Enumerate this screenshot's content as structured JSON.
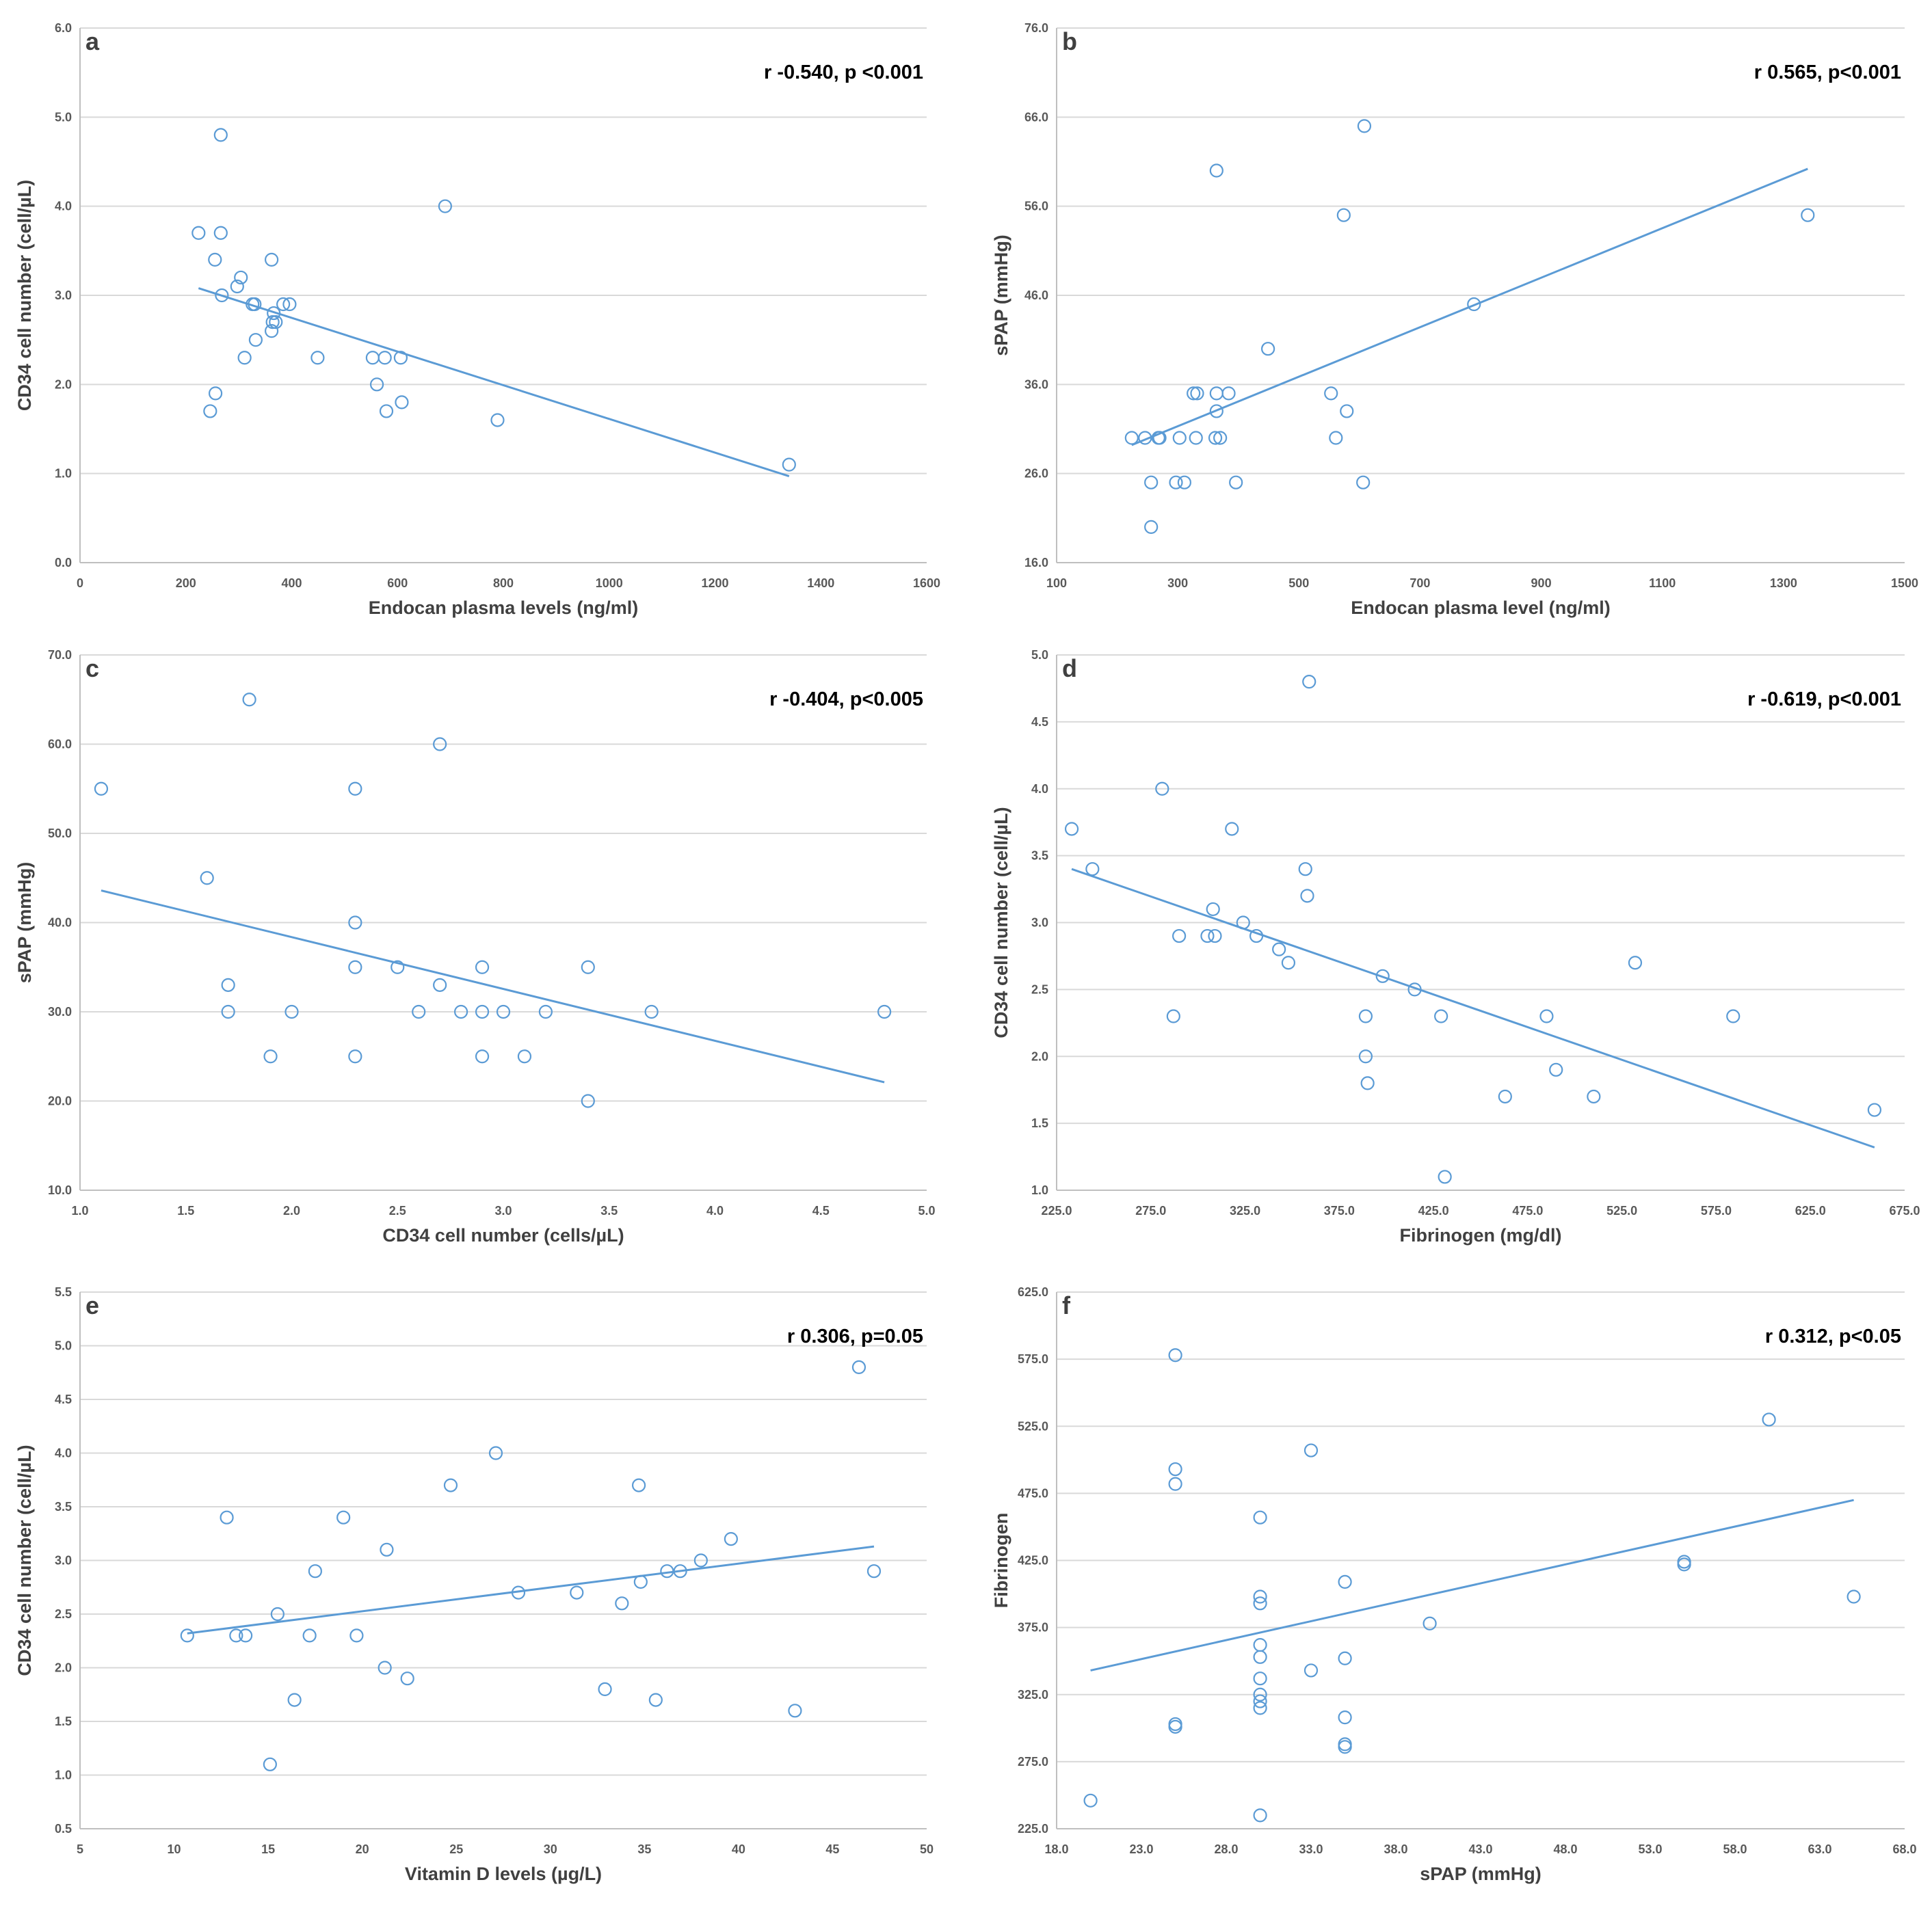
{
  "colors": {
    "marker": "#5b9bd5",
    "trend": "#5b9bd5",
    "grid": "#d9d9d9",
    "text": "#404040"
  },
  "chart_data": [
    {
      "panel": "a",
      "type": "scatter",
      "stat": "r -0.540, p <0.001",
      "xlabel": "Endocan plasma levels (ng/ml)",
      "ylabel": "CD34 cell number (cell/µL)",
      "xlim": [
        0,
        1600
      ],
      "ylim": [
        0,
        6
      ],
      "xticks": [
        0,
        200,
        400,
        600,
        800,
        1000,
        1200,
        1400,
        1600
      ],
      "yticks": [
        0,
        1,
        2,
        3,
        4,
        5,
        6
      ],
      "xtick_labels": [
        "0",
        "200",
        "400",
        "600",
        "800",
        "1000",
        "1200",
        "1400",
        "1600"
      ],
      "ytick_labels": [
        "0.0",
        "1.0",
        "2.0",
        "3.0",
        "4.0",
        "5.0",
        "6.0"
      ],
      "points": [
        [
          266,
          4.8
        ],
        [
          224,
          3.7
        ],
        [
          266,
          3.7
        ],
        [
          255,
          3.4
        ],
        [
          362,
          3.4
        ],
        [
          304,
          3.2
        ],
        [
          297,
          3.1
        ],
        [
          268,
          3.0
        ],
        [
          326,
          2.9
        ],
        [
          330,
          2.9
        ],
        [
          384,
          2.9
        ],
        [
          396,
          2.9
        ],
        [
          366,
          2.8
        ],
        [
          364,
          2.7
        ],
        [
          370,
          2.7
        ],
        [
          362,
          2.6
        ],
        [
          332,
          2.5
        ],
        [
          311,
          2.3
        ],
        [
          449,
          2.3
        ],
        [
          553,
          2.3
        ],
        [
          576,
          2.3
        ],
        [
          606,
          2.3
        ],
        [
          561,
          2.0
        ],
        [
          256,
          1.9
        ],
        [
          608,
          1.8
        ],
        [
          246,
          1.7
        ],
        [
          579,
          1.7
        ],
        [
          789,
          1.6
        ],
        [
          1340,
          1.1
        ],
        [
          690,
          4.0
        ]
      ],
      "trend": [
        [
          224,
          3.08
        ],
        [
          1340,
          0.97
        ]
      ]
    },
    {
      "panel": "b",
      "type": "scatter",
      "stat": "r 0.565, p<0.001",
      "xlabel": "Endocan plasma level (ng/ml)",
      "ylabel": "sPAP (mmHg)",
      "xlim": [
        100,
        1500
      ],
      "ylim": [
        16,
        76
      ],
      "xticks": [
        100,
        300,
        500,
        700,
        900,
        1100,
        1300,
        1500
      ],
      "yticks": [
        16,
        26,
        36,
        46,
        56,
        66,
        76
      ],
      "xtick_labels": [
        "100",
        "300",
        "500",
        "700",
        "900",
        "1100",
        "1300",
        "1500"
      ],
      "ytick_labels": [
        "16.0",
        "26.0",
        "36.0",
        "46.0",
        "56.0",
        "66.0",
        "76.0"
      ],
      "points": [
        [
          608,
          65
        ],
        [
          364,
          60
        ],
        [
          574,
          55
        ],
        [
          1340,
          55
        ],
        [
          789,
          45
        ],
        [
          449,
          40
        ],
        [
          326,
          35
        ],
        [
          332,
          35
        ],
        [
          364,
          35
        ],
        [
          384,
          35
        ],
        [
          553,
          35
        ],
        [
          364,
          33
        ],
        [
          579,
          33
        ],
        [
          224,
          30
        ],
        [
          246,
          30
        ],
        [
          268,
          30
        ],
        [
          270,
          30
        ],
        [
          303,
          30
        ],
        [
          330,
          30
        ],
        [
          362,
          30
        ],
        [
          370,
          30
        ],
        [
          561,
          30
        ],
        [
          256,
          25
        ],
        [
          297,
          25
        ],
        [
          311,
          25
        ],
        [
          396,
          25
        ],
        [
          606,
          25
        ],
        [
          256,
          20
        ]
      ],
      "trend": [
        [
          224,
          29.2
        ],
        [
          1340,
          60.2
        ]
      ]
    },
    {
      "panel": "c",
      "type": "scatter",
      "stat": "r -0.404, p<0.005",
      "xlabel": "CD34 cell number (cells/µL)",
      "ylabel": "sPAP (mmHg)",
      "xlim": [
        1,
        5
      ],
      "ylim": [
        10,
        70
      ],
      "xticks": [
        1,
        1.5,
        2,
        2.5,
        3,
        3.5,
        4,
        4.5,
        5
      ],
      "yticks": [
        10,
        20,
        30,
        40,
        50,
        60,
        70
      ],
      "xtick_labels": [
        "1.0",
        "1.5",
        "2.0",
        "2.5",
        "3.0",
        "3.5",
        "4.0",
        "4.5",
        "5.0"
      ],
      "ytick_labels": [
        "10.0",
        "20.0",
        "30.0",
        "40.0",
        "50.0",
        "60.0",
        "70.0"
      ],
      "points": [
        [
          1.8,
          65
        ],
        [
          2.7,
          60
        ],
        [
          1.1,
          55
        ],
        [
          2.3,
          55
        ],
        [
          1.6,
          45
        ],
        [
          2.3,
          40
        ],
        [
          2.3,
          35
        ],
        [
          2.5,
          35
        ],
        [
          2.9,
          35
        ],
        [
          3.4,
          35
        ],
        [
          1.7,
          33
        ],
        [
          2.7,
          33
        ],
        [
          1.7,
          30
        ],
        [
          2.0,
          30
        ],
        [
          2.6,
          30
        ],
        [
          2.8,
          30
        ],
        [
          2.9,
          30
        ],
        [
          3.0,
          30
        ],
        [
          3.2,
          30
        ],
        [
          3.7,
          30
        ],
        [
          4.8,
          30
        ],
        [
          1.9,
          25
        ],
        [
          2.3,
          25
        ],
        [
          2.9,
          25
        ],
        [
          3.1,
          25
        ],
        [
          3.4,
          20
        ]
      ],
      "trend": [
        [
          1.1,
          43.6
        ],
        [
          4.8,
          22.1
        ]
      ]
    },
    {
      "panel": "d",
      "type": "scatter",
      "stat": "r -0.619, p<0.001",
      "xlabel": "Fibrinogen (mg/dl)",
      "ylabel": "CD34 cell number (cell/µL)",
      "xlim": [
        225,
        675
      ],
      "ylim": [
        1,
        5
      ],
      "xticks": [
        225,
        275,
        325,
        375,
        425,
        475,
        525,
        575,
        625,
        675
      ],
      "yticks": [
        1,
        1.5,
        2,
        2.5,
        3,
        3.5,
        4,
        4.5,
        5
      ],
      "xtick_labels": [
        "225.0",
        "275.0",
        "325.0",
        "375.0",
        "425.0",
        "475.0",
        "525.0",
        "575.0",
        "625.0",
        "675.0"
      ],
      "ytick_labels": [
        "1.0",
        "1.5",
        "2.0",
        "2.5",
        "3.0",
        "3.5",
        "4.0",
        "4.5",
        "5.0"
      ],
      "points": [
        [
          359,
          4.8
        ],
        [
          281,
          4.0
        ],
        [
          233,
          3.7
        ],
        [
          318,
          3.7
        ],
        [
          244,
          3.4
        ],
        [
          357,
          3.4
        ],
        [
          358,
          3.2
        ],
        [
          308,
          3.1
        ],
        [
          324,
          3.0
        ],
        [
          290,
          2.9
        ],
        [
          305,
          2.9
        ],
        [
          309,
          2.9
        ],
        [
          331,
          2.9
        ],
        [
          343,
          2.8
        ],
        [
          348,
          2.7
        ],
        [
          532,
          2.7
        ],
        [
          398,
          2.6
        ],
        [
          415,
          2.5
        ],
        [
          287,
          2.3
        ],
        [
          389,
          2.3
        ],
        [
          429,
          2.3
        ],
        [
          485,
          2.3
        ],
        [
          584,
          2.3
        ],
        [
          389,
          2.0
        ],
        [
          490,
          1.9
        ],
        [
          390,
          1.8
        ],
        [
          463,
          1.7
        ],
        [
          510,
          1.7
        ],
        [
          659,
          1.6
        ],
        [
          431,
          1.1
        ]
      ],
      "trend": [
        [
          233,
          3.4
        ],
        [
          659,
          1.32
        ]
      ]
    },
    {
      "panel": "e",
      "type": "scatter",
      "stat": "r 0.306, p=0.05",
      "xlabel": "Vitamin D levels (µg/L)",
      "ylabel": "CD34 cell number (cell/µL)",
      "xlim": [
        5,
        50
      ],
      "ylim": [
        0.5,
        5.5
      ],
      "xticks": [
        5,
        10,
        15,
        20,
        25,
        30,
        35,
        40,
        45,
        50
      ],
      "yticks": [
        0.5,
        1,
        1.5,
        2,
        2.5,
        3,
        3.5,
        4,
        4.5,
        5,
        5.5
      ],
      "xtick_labels": [
        "5",
        "10",
        "15",
        "20",
        "25",
        "30",
        "35",
        "40",
        "45",
        "50"
      ],
      "ytick_labels": [
        "0.5",
        "1.0",
        "1.5",
        "2.0",
        "2.5",
        "3.0",
        "3.5",
        "4.0",
        "4.5",
        "5.0",
        "5.5"
      ],
      "points": [
        [
          46.4,
          4.8
        ],
        [
          27.1,
          4.0
        ],
        [
          24.7,
          3.7
        ],
        [
          34.7,
          3.7
        ],
        [
          12.8,
          3.4
        ],
        [
          19.0,
          3.4
        ],
        [
          39.6,
          3.2
        ],
        [
          21.3,
          3.1
        ],
        [
          38.0,
          3.0
        ],
        [
          17.5,
          2.9
        ],
        [
          36.2,
          2.9
        ],
        [
          36.9,
          2.9
        ],
        [
          47.2,
          2.9
        ],
        [
          34.8,
          2.8
        ],
        [
          28.3,
          2.7
        ],
        [
          31.4,
          2.7
        ],
        [
          33.8,
          2.6
        ],
        [
          15.5,
          2.5
        ],
        [
          10.7,
          2.3
        ],
        [
          13.3,
          2.3
        ],
        [
          13.8,
          2.3
        ],
        [
          17.2,
          2.3
        ],
        [
          19.7,
          2.3
        ],
        [
          21.2,
          2.0
        ],
        [
          22.4,
          1.9
        ],
        [
          32.9,
          1.8
        ],
        [
          16.4,
          1.7
        ],
        [
          35.6,
          1.7
        ],
        [
          43.0,
          1.6
        ],
        [
          15.1,
          1.1
        ]
      ],
      "trend": [
        [
          10.7,
          2.32
        ],
        [
          47.2,
          3.13
        ]
      ]
    },
    {
      "panel": "f",
      "type": "scatter",
      "stat": "r 0.312, p<0.05",
      "xlabel": "sPAP (mmHg)",
      "ylabel": "Fibrinogen",
      "xlim": [
        18,
        68
      ],
      "ylim": [
        225,
        625
      ],
      "xticks": [
        18,
        23,
        28,
        33,
        38,
        43,
        48,
        53,
        58,
        63,
        68
      ],
      "yticks": [
        225,
        275,
        325,
        375,
        425,
        475,
        525,
        575,
        625
      ],
      "xtick_labels": [
        "18.0",
        "23.0",
        "28.0",
        "33.0",
        "38.0",
        "43.0",
        "48.0",
        "53.0",
        "58.0",
        "63.0",
        "68.0"
      ],
      "ytick_labels": [
        "225.0",
        "275.0",
        "325.0",
        "375.0",
        "425.0",
        "475.0",
        "525.0",
        "575.0",
        "625.0"
      ],
      "points": [
        [
          25,
          578
        ],
        [
          25,
          493
        ],
        [
          25,
          482
        ],
        [
          33,
          507
        ],
        [
          30,
          457
        ],
        [
          60,
          530
        ],
        [
          55,
          424
        ],
        [
          55,
          422
        ],
        [
          65,
          398
        ],
        [
          35,
          409
        ],
        [
          30,
          398
        ],
        [
          30,
          393
        ],
        [
          40,
          378
        ],
        [
          30,
          362
        ],
        [
          30,
          353
        ],
        [
          35,
          352
        ],
        [
          33,
          343
        ],
        [
          30,
          337
        ],
        [
          30,
          325
        ],
        [
          30,
          320
        ],
        [
          30,
          315
        ],
        [
          35,
          308
        ],
        [
          25,
          303
        ],
        [
          25,
          301
        ],
        [
          35,
          288
        ],
        [
          35,
          286
        ],
        [
          20,
          246
        ],
        [
          30,
          235
        ]
      ],
      "trend": [
        [
          20,
          343
        ],
        [
          65,
          470
        ]
      ]
    }
  ]
}
